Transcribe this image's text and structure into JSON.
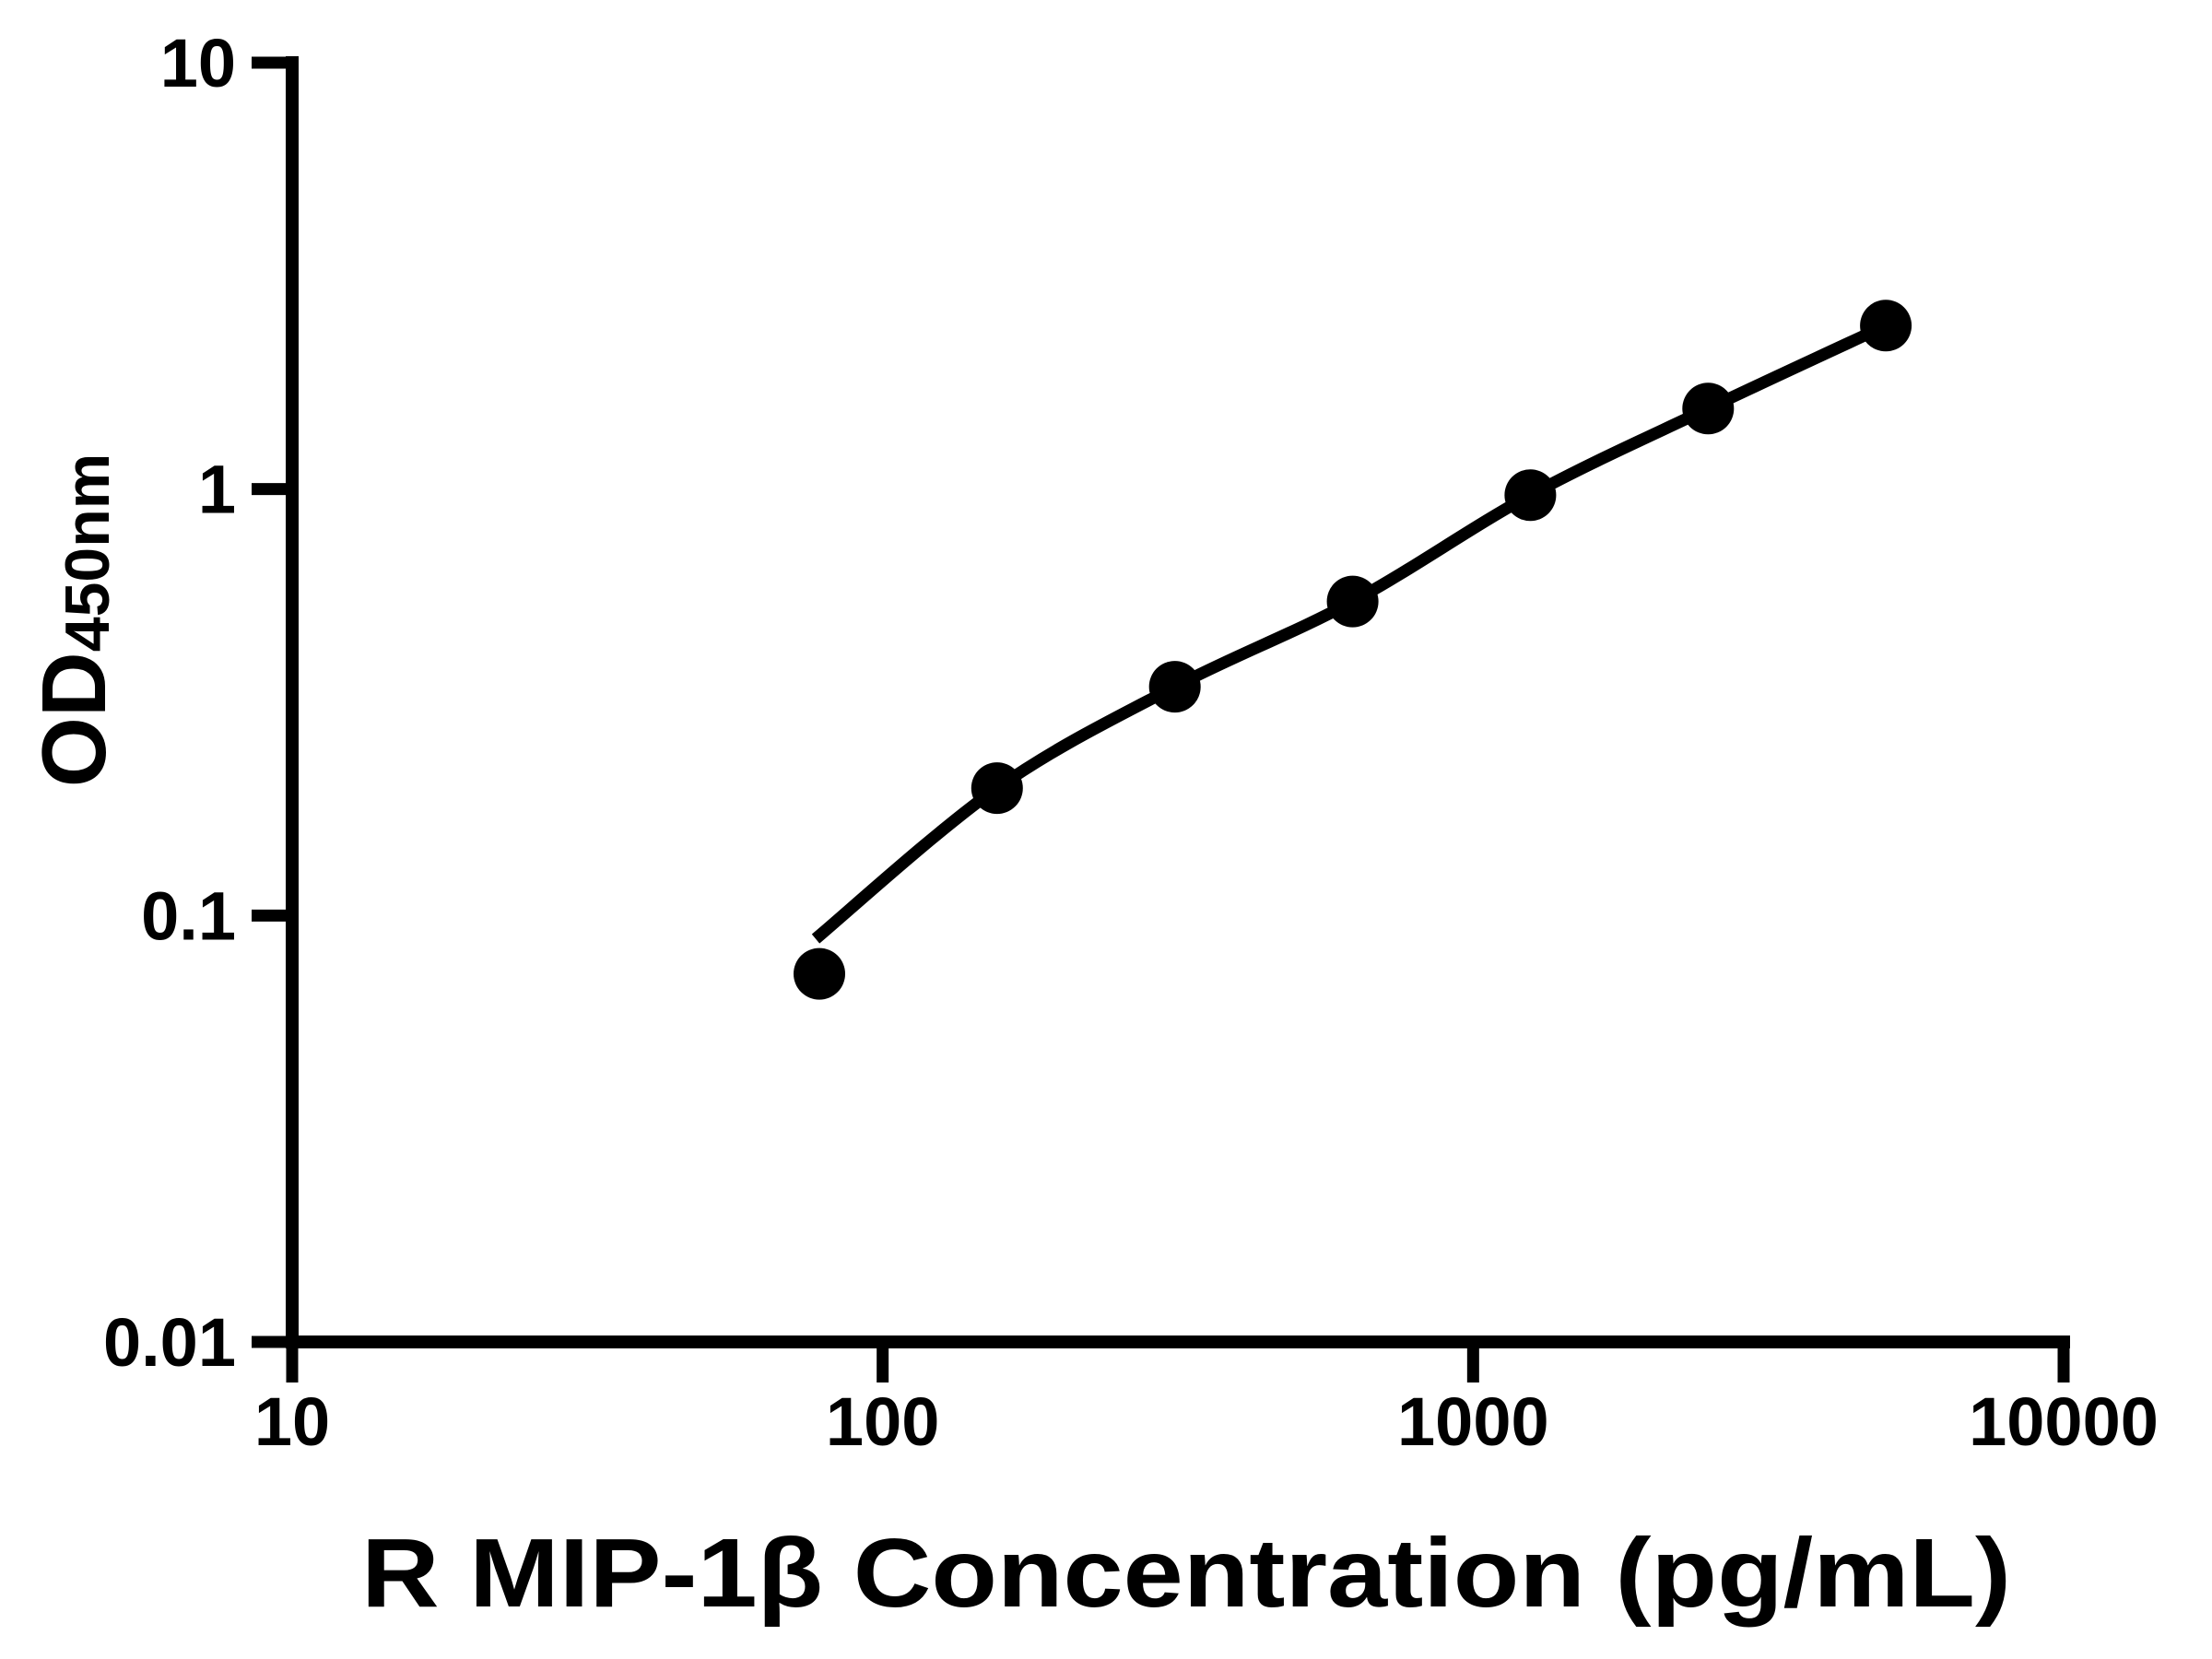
{
  "figure": {
    "background_color": "#ffffff",
    "ink_color": "#000000"
  },
  "chart_data": {
    "type": "scatter",
    "subtype": "standard-curve-with-fit-line",
    "title": "",
    "xlabel": "R MIP-1β Concentration (pg/mL)",
    "ylabel_main": "OD",
    "ylabel_sub": "450nm",
    "x_scale": "log10",
    "y_scale": "log10",
    "xlim": [
      10,
      10000
    ],
    "ylim": [
      0.01,
      10
    ],
    "x": [
      78.125,
      156.25,
      312.5,
      625,
      1250,
      2500,
      5000
    ],
    "y": [
      0.073,
      0.199,
      0.344,
      0.545,
      0.968,
      1.545,
      2.418
    ],
    "x_ticks": [
      10,
      100,
      1000,
      10000
    ],
    "x_tick_labels": [
      "10",
      "100",
      "1000",
      "10000"
    ],
    "y_ticks": [
      10,
      1,
      0.1,
      0.01
    ],
    "y_tick_labels": [
      "10",
      "1",
      "0.1",
      "0.01"
    ],
    "marker": "filled-circle-black",
    "line": "smooth-fit-curve-black",
    "grid": false,
    "legend": "none"
  }
}
